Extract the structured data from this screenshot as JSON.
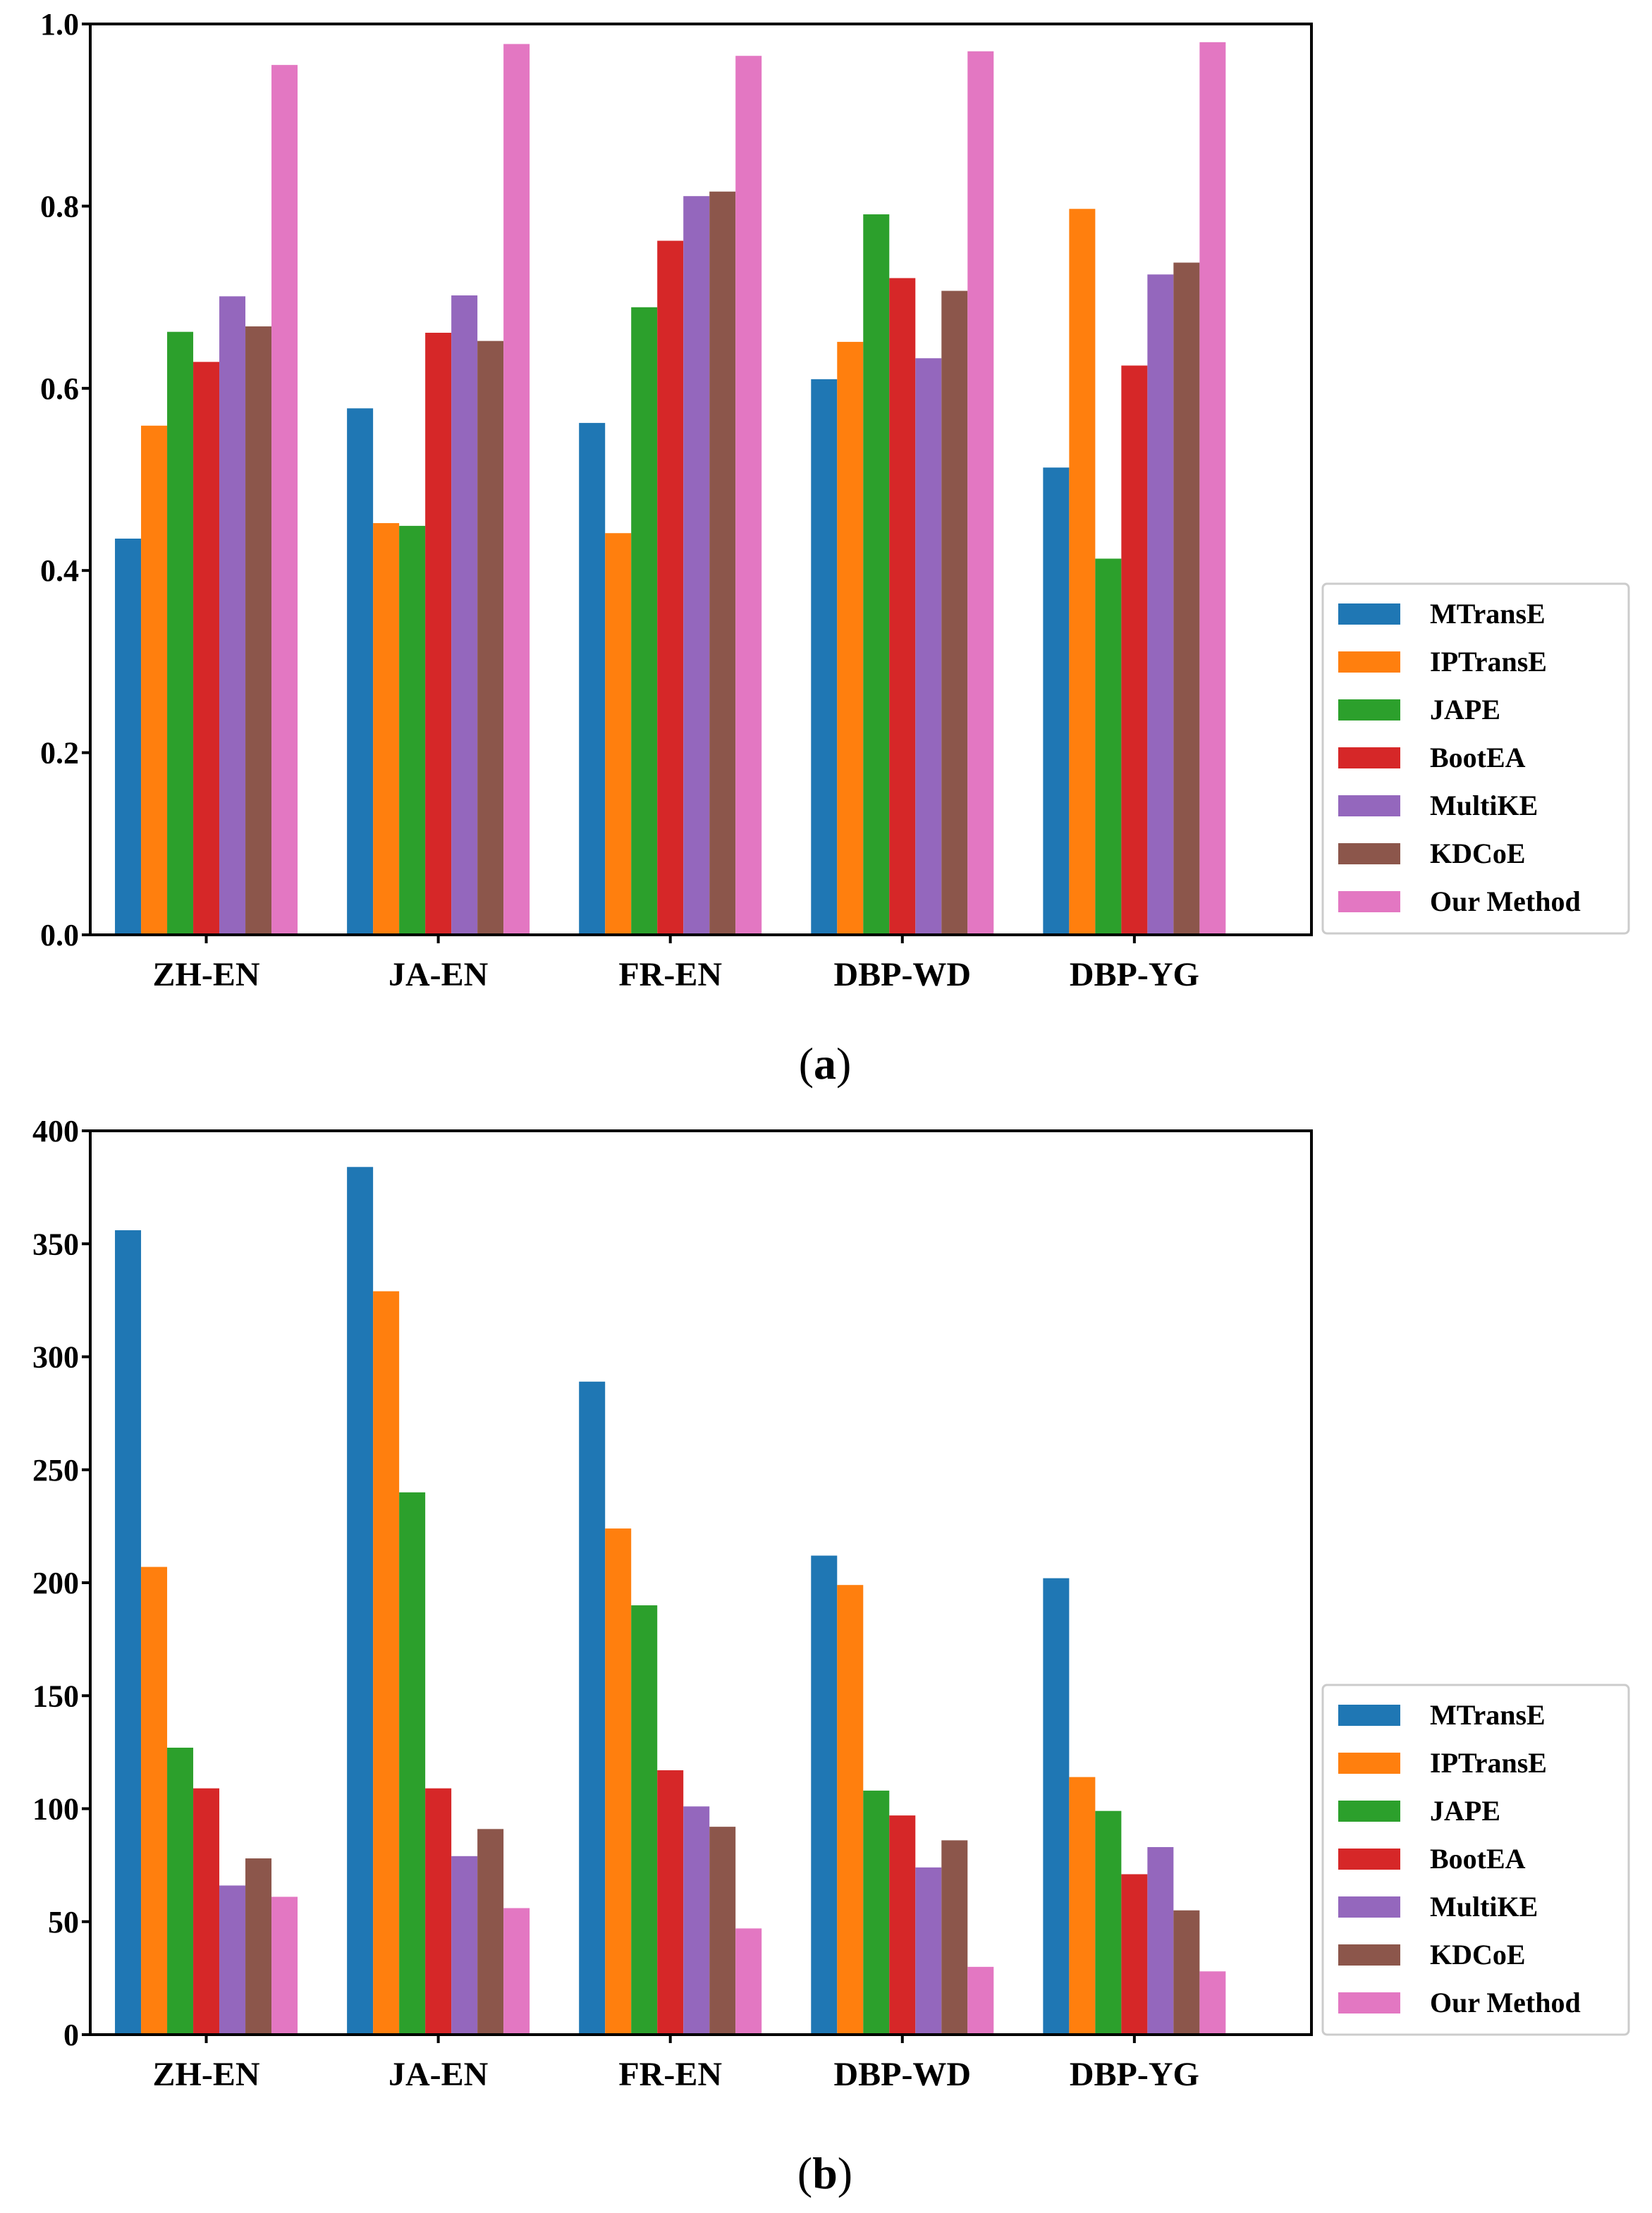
{
  "chart_data": [
    {
      "type": "bar",
      "panel": "a",
      "caption_open": "(",
      "caption_letter": "a",
      "caption_close": ")",
      "title": "",
      "xlabel": "",
      "ylabel": "",
      "ylim": [
        0,
        1.0
      ],
      "yticks": [
        0.0,
        0.2,
        0.4,
        0.6,
        0.8,
        1.0
      ],
      "ytick_labels": [
        "0.0",
        "0.2",
        "0.4",
        "0.6",
        "0.8",
        "1.0"
      ],
      "categories": [
        "ZH-EN",
        "JA-EN",
        "FR-EN",
        "DBP-WD",
        "DBP-YG"
      ],
      "legend_position": "right",
      "series": [
        {
          "name": "MTransE",
          "color": "#1f77b4",
          "values": [
            0.435,
            0.578,
            0.562,
            0.61,
            0.513
          ]
        },
        {
          "name": "IPTransE",
          "color": "#ff7f0e",
          "values": [
            0.559,
            0.452,
            0.441,
            0.651,
            0.797
          ]
        },
        {
          "name": "JAPE",
          "color": "#2ca02c",
          "values": [
            0.662,
            0.449,
            0.689,
            0.791,
            0.413
          ]
        },
        {
          "name": "BootEA",
          "color": "#d62728",
          "values": [
            0.629,
            0.661,
            0.762,
            0.721,
            0.625
          ]
        },
        {
          "name": "MultiKE",
          "color": "#9467bd",
          "values": [
            0.701,
            0.702,
            0.811,
            0.633,
            0.725
          ]
        },
        {
          "name": "KDCoE",
          "color": "#8c564b",
          "values": [
            0.668,
            0.652,
            0.816,
            0.707,
            0.738
          ]
        },
        {
          "name": "Our Method",
          "color": "#e377c2",
          "values": [
            0.955,
            0.978,
            0.965,
            0.97,
            0.98
          ]
        }
      ]
    },
    {
      "type": "bar",
      "panel": "b",
      "caption_open": "(",
      "caption_letter": "b",
      "caption_close": ")",
      "title": "",
      "xlabel": "",
      "ylabel": "",
      "ylim": [
        0,
        400
      ],
      "yticks": [
        0,
        50,
        100,
        150,
        200,
        250,
        300,
        350,
        400
      ],
      "ytick_labels": [
        "0",
        "50",
        "100",
        "150",
        "200",
        "250",
        "300",
        "350",
        "400"
      ],
      "categories": [
        "ZH-EN",
        "JA-EN",
        "FR-EN",
        "DBP-WD",
        "DBP-YG"
      ],
      "legend_position": "right",
      "series": [
        {
          "name": "MTransE",
          "color": "#1f77b4",
          "values": [
            356,
            384,
            289,
            212,
            202
          ]
        },
        {
          "name": "IPTransE",
          "color": "#ff7f0e",
          "values": [
            207,
            329,
            224,
            199,
            114
          ]
        },
        {
          "name": "JAPE",
          "color": "#2ca02c",
          "values": [
            127,
            240,
            190,
            108,
            99
          ]
        },
        {
          "name": "BootEA",
          "color": "#d62728",
          "values": [
            109,
            109,
            117,
            97,
            71
          ]
        },
        {
          "name": "MultiKE",
          "color": "#9467bd",
          "values": [
            66,
            79,
            101,
            74,
            83
          ]
        },
        {
          "name": "KDCoE",
          "color": "#8c564b",
          "values": [
            78,
            91,
            92,
            86,
            55
          ]
        },
        {
          "name": "Our Method",
          "color": "#e377c2",
          "values": [
            61,
            56,
            47,
            30,
            28
          ]
        }
      ]
    }
  ]
}
